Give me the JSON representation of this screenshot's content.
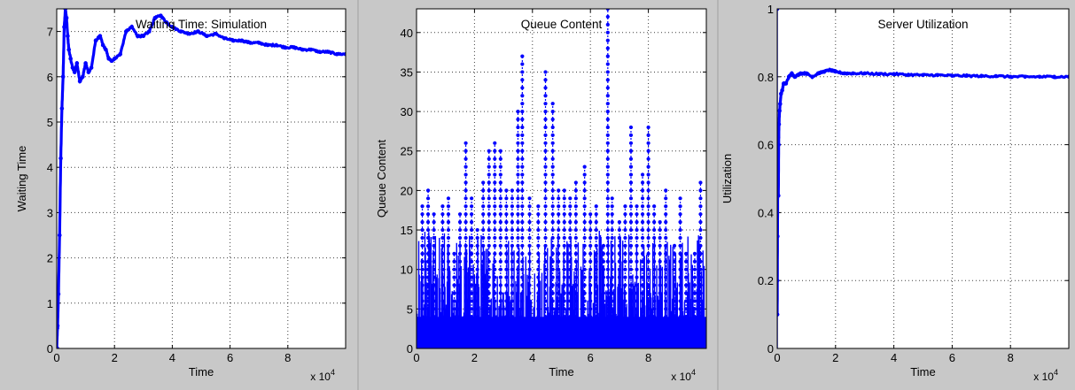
{
  "colors": {
    "series": "#0000ff",
    "background": "#c8c8c8",
    "axes": "#ffffff"
  },
  "chart_data": [
    {
      "type": "line",
      "title": "Waiting Time: Simulation",
      "xlabel": "Time",
      "ylabel": "Waiting Time",
      "x_exponent_label": "x 10",
      "x_exponent": "4",
      "xlim": [
        0,
        10
      ],
      "ylim": [
        0,
        7.5
      ],
      "xticks": [
        0,
        2,
        4,
        6,
        8
      ],
      "yticks": [
        0,
        1,
        2,
        3,
        4,
        5,
        6,
        7
      ],
      "grid": true,
      "marker": "dot",
      "series": [
        {
          "x": [
            0,
            0.03,
            0.06,
            0.1,
            0.14,
            0.18,
            0.22,
            0.26,
            0.3,
            0.34,
            0.38,
            0.42,
            0.48,
            0.55,
            0.62,
            0.7,
            0.8,
            0.9,
            1.0,
            1.1,
            1.2,
            1.35,
            1.5,
            1.6,
            1.7,
            1.8,
            1.9,
            2.0,
            2.2,
            2.4,
            2.6,
            2.8,
            3.0,
            3.2,
            3.4,
            3.6,
            3.8,
            4.0,
            4.3,
            4.6,
            4.9,
            5.2,
            5.5,
            5.8,
            6.1,
            6.4,
            6.7,
            7.0,
            7.3,
            7.6,
            7.9,
            8.2,
            8.5,
            8.8,
            9.1,
            9.4,
            9.7,
            10.0
          ],
          "y": [
            0,
            0.5,
            1.2,
            2.5,
            4.2,
            5.3,
            6.0,
            7.1,
            7.5,
            7.3,
            6.9,
            6.6,
            6.4,
            6.2,
            6.1,
            6.3,
            5.9,
            6.0,
            6.3,
            6.1,
            6.2,
            6.8,
            6.9,
            6.7,
            6.6,
            6.4,
            6.35,
            6.4,
            6.5,
            7.0,
            7.1,
            6.9,
            6.9,
            7.0,
            7.3,
            7.35,
            7.2,
            7.1,
            7.0,
            6.95,
            7.0,
            6.9,
            6.95,
            6.85,
            6.8,
            6.8,
            6.75,
            6.75,
            6.7,
            6.7,
            6.65,
            6.65,
            6.6,
            6.6,
            6.55,
            6.55,
            6.5,
            6.5
          ]
        }
      ]
    },
    {
      "type": "scatter",
      "title": "Queue Content",
      "xlabel": "Time",
      "ylabel": "Queue Content",
      "x_exponent_label": "x 10",
      "x_exponent": "4",
      "xlim": [
        0,
        10
      ],
      "ylim": [
        0,
        43
      ],
      "xticks": [
        0,
        2,
        4,
        6,
        8
      ],
      "yticks": [
        0,
        5,
        10,
        15,
        20,
        25,
        30,
        35,
        40
      ],
      "grid": true,
      "marker": "dot",
      "series": [
        {
          "x": [
            0.2,
            0.4,
            0.6,
            0.9,
            1.1,
            1.3,
            1.5,
            1.7,
            1.9,
            2.1,
            2.3,
            2.5,
            2.7,
            2.9,
            3.1,
            3.3,
            3.5,
            3.65,
            3.9,
            4.2,
            4.45,
            4.7,
            4.9,
            5.1,
            5.3,
            5.5,
            5.8,
            6.0,
            6.2,
            6.45,
            6.6,
            6.75,
            7.0,
            7.2,
            7.4,
            7.6,
            7.8,
            8.0,
            8.2,
            8.4,
            8.6,
            8.9,
            9.1,
            9.3,
            9.6,
            9.8
          ],
          "y": [
            18,
            20,
            17,
            18,
            19,
            12,
            17,
            26,
            19,
            15,
            21,
            25,
            26,
            25,
            20,
            20,
            30,
            37,
            19,
            18,
            35,
            31,
            20,
            20,
            19,
            21,
            23,
            17,
            18,
            13,
            43,
            19,
            16,
            18,
            28,
            18,
            22,
            28,
            18,
            16,
            20,
            13,
            19,
            12,
            12,
            21
          ]
        }
      ]
    },
    {
      "type": "line",
      "title": "Server Utilization",
      "xlabel": "Time",
      "ylabel": "Utilization",
      "x_exponent_label": "x 10",
      "x_exponent": "4",
      "xlim": [
        0,
        10
      ],
      "ylim": [
        0,
        1
      ],
      "xticks": [
        0,
        2,
        4,
        6,
        8
      ],
      "yticks": [
        "0",
        "0.2",
        "0.4",
        "0.6",
        "0.8",
        "1"
      ],
      "grid": true,
      "marker": "dot",
      "series": [
        {
          "x": [
            0,
            0.01,
            0.02,
            0.03,
            0.04,
            0.05,
            0.06,
            0.08,
            0.1,
            0.13,
            0.17,
            0.22,
            0.3,
            0.4,
            0.5,
            0.6,
            0.8,
            1.0,
            1.2,
            1.4,
            1.6,
            1.8,
            2.0,
            2.3,
            2.6,
            3.0,
            3.5,
            4.0,
            4.5,
            5.0,
            5.5,
            6.0,
            6.5,
            7.0,
            7.5,
            8.0,
            8.5,
            9.0,
            9.5,
            10.0
          ],
          "y": [
            0.1,
            0.33,
            0.5,
            0.62,
            0.45,
            0.6,
            0.66,
            0.7,
            0.72,
            0.75,
            0.76,
            0.78,
            0.78,
            0.8,
            0.81,
            0.8,
            0.81,
            0.81,
            0.8,
            0.81,
            0.815,
            0.82,
            0.815,
            0.81,
            0.81,
            0.81,
            0.808,
            0.808,
            0.806,
            0.805,
            0.805,
            0.803,
            0.803,
            0.802,
            0.802,
            0.8,
            0.8,
            0.8,
            0.8,
            0.8
          ]
        }
      ]
    }
  ]
}
